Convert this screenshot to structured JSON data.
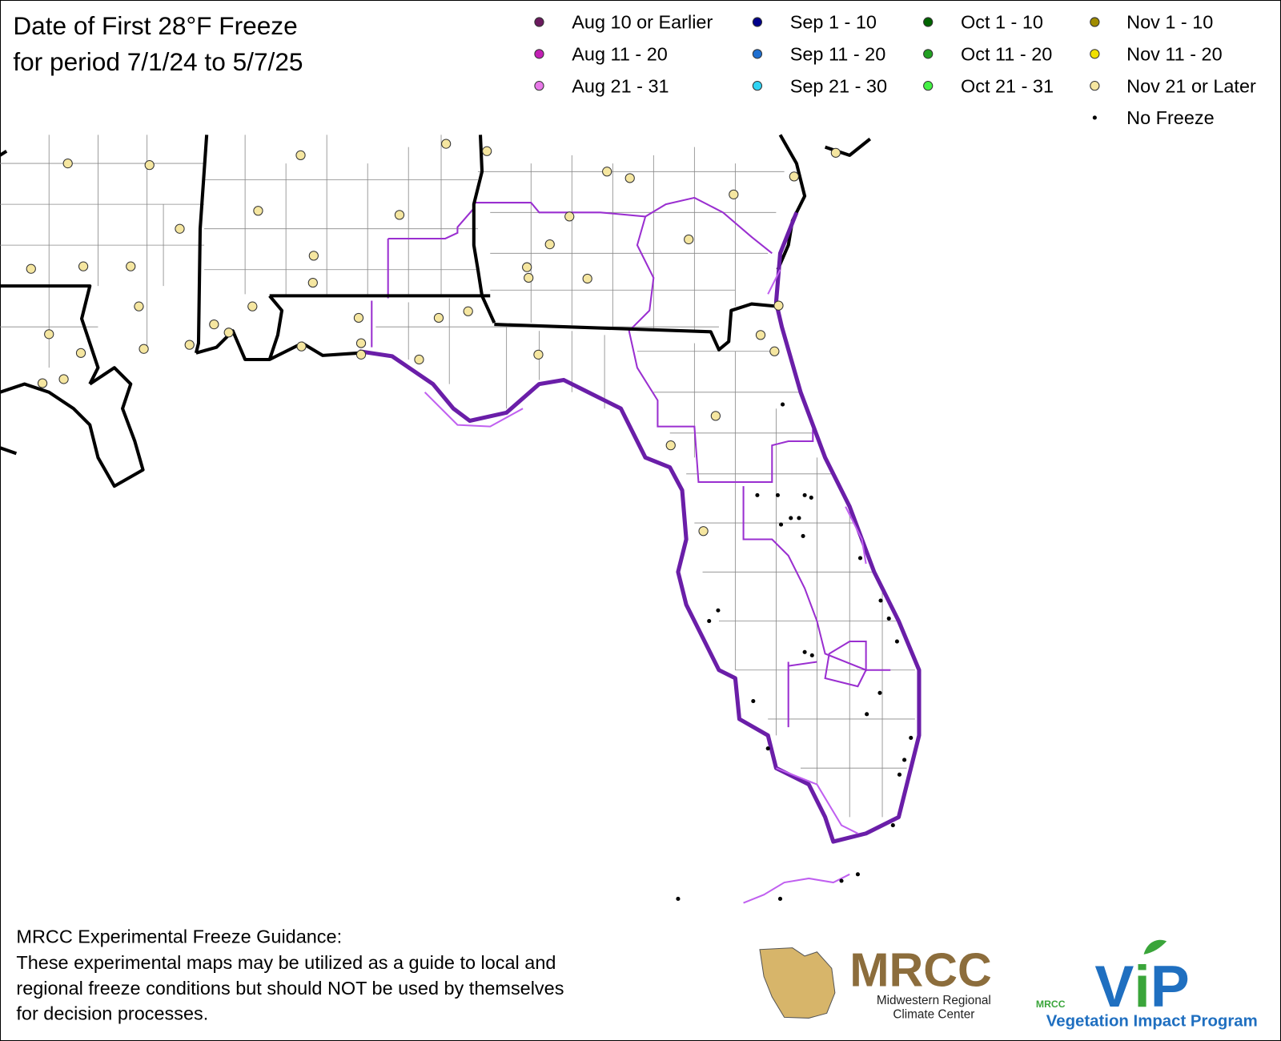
{
  "title": [
    "Date of First 28°F Freeze",
    "for period 7/1/24 to 5/7/25"
  ],
  "legend": [
    {
      "label": "Aug 10 or Earlier",
      "color": "#6b1a5e",
      "marker": "circle"
    },
    {
      "label": "Aug 11 - 20",
      "color": "#c21fb4",
      "marker": "circle"
    },
    {
      "label": "Aug 21 - 31",
      "color": "#e878e8",
      "marker": "circle"
    },
    {
      "label": "Sep 1 - 10",
      "color": "#00008b",
      "marker": "circle"
    },
    {
      "label": "Sep 11 - 20",
      "color": "#1e6fd0",
      "marker": "circle"
    },
    {
      "label": "Sep 21 - 30",
      "color": "#30d4f4",
      "marker": "circle"
    },
    {
      "label": "Oct 1 - 10",
      "color": "#006400",
      "marker": "circle"
    },
    {
      "label": "Oct 11 - 20",
      "color": "#22a022",
      "marker": "circle"
    },
    {
      "label": "Oct 21 - 31",
      "color": "#44f044",
      "marker": "circle"
    },
    {
      "label": "Nov 1 - 10",
      "color": "#a08c00",
      "marker": "circle"
    },
    {
      "label": "Nov 11 - 20",
      "color": "#f0e000",
      "marker": "circle"
    },
    {
      "label": "Nov 21 or Later",
      "color": "#f5e6a0",
      "marker": "circle"
    },
    {
      "label": "No Freeze",
      "color": "#000000",
      "marker": "dot"
    }
  ],
  "footer": {
    "heading": "MRCC Experimental Freeze Guidance:",
    "lines": [
      "These experimental maps may be utilized as a guide to local and",
      "regional freeze conditions but should NOT be used by themselves",
      "for decision processes."
    ]
  },
  "logos": {
    "mrcc": {
      "name": "MRCC",
      "subtitle": [
        "Midwestern Regional",
        "Climate Center"
      ]
    },
    "vip": {
      "small": "MRCC",
      "letters": [
        "V",
        "i",
        "P"
      ],
      "program": "Vegetation Impact Program"
    }
  }
}
